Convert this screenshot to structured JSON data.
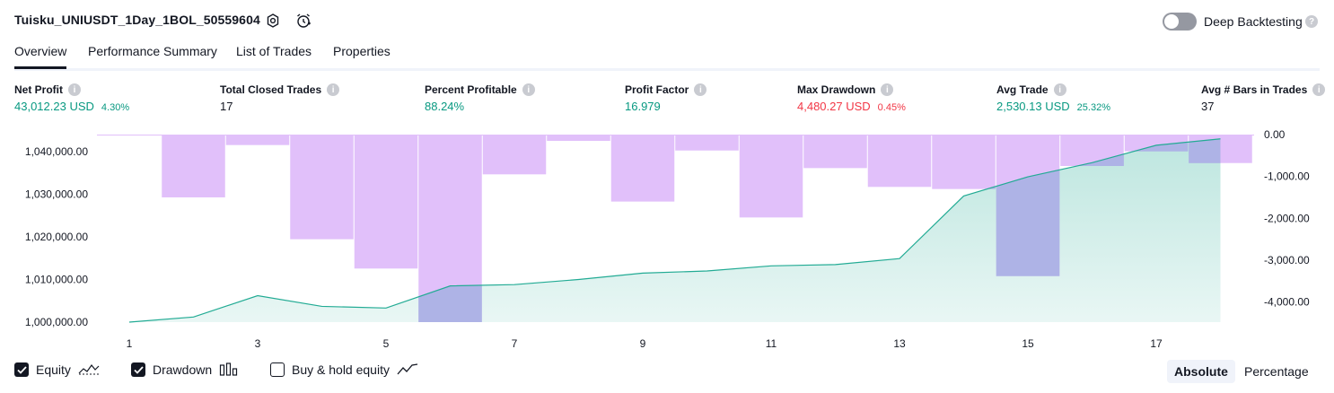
{
  "header": {
    "title": "Tuisku_UNIUSDT_1Day_1BOL_50559604",
    "deep_backtesting_label": "Deep Backtesting",
    "deep_backtesting_enabled": false
  },
  "tabs": [
    {
      "label": "Overview",
      "active": true
    },
    {
      "label": "Performance Summary",
      "active": false
    },
    {
      "label": "List of Trades",
      "active": false
    },
    {
      "label": "Properties",
      "active": false
    }
  ],
  "metrics": [
    {
      "label": "Net Profit",
      "value": "43,012.23 USD",
      "pct": "4.30%",
      "tone": "pos"
    },
    {
      "label": "Total Closed Trades",
      "value": "17",
      "pct": "",
      "tone": "neutral"
    },
    {
      "label": "Percent Profitable",
      "value": "88.24%",
      "pct": "",
      "tone": "pos"
    },
    {
      "label": "Profit Factor",
      "value": "16.979",
      "pct": "",
      "tone": "pos"
    },
    {
      "label": "Max Drawdown",
      "value": "4,480.27 USD",
      "pct": "0.45%",
      "tone": "neg"
    },
    {
      "label": "Avg Trade",
      "value": "2,530.13 USD",
      "pct": "25.32%",
      "tone": "pos"
    },
    {
      "label": "Avg # Bars in Trades",
      "value": "37",
      "pct": "",
      "tone": "neutral"
    }
  ],
  "chart_data": {
    "type": "area",
    "x": [
      1,
      2,
      3,
      4,
      5,
      6,
      7,
      8,
      9,
      10,
      11,
      12,
      13,
      14,
      15,
      16,
      17,
      18
    ],
    "x_tick_labels": [
      "1",
      "3",
      "5",
      "7",
      "9",
      "11",
      "13",
      "15",
      "17"
    ],
    "series": [
      {
        "name": "Equity",
        "axis": "left",
        "color": "#22ab94",
        "values": [
          1000000,
          1001200,
          1006200,
          1003700,
          1003300,
          1008500,
          1008800,
          1010000,
          1011500,
          1012000,
          1013200,
          1013500,
          1014900,
          1029600,
          1034100,
          1037400,
          1041500,
          1043000
        ]
      },
      {
        "name": "Drawdown",
        "axis": "right",
        "type": "bar",
        "color": "#e1c0fa",
        "values": [
          0,
          -1500,
          -250,
          -2500,
          -3200,
          -4480,
          -950,
          -150,
          -1600,
          -380,
          -1980,
          -800,
          -1250,
          -1300,
          -3380,
          -750,
          -400,
          -680
        ]
      }
    ],
    "left_axis": {
      "ylim": [
        1000000,
        1044000
      ],
      "ticks": [
        "1,000,000.00",
        "1,010,000.00",
        "1,020,000.00",
        "1,030,000.00",
        "1,040,000.00"
      ]
    },
    "right_axis": {
      "ylim": [
        -4480,
        0
      ],
      "ticks": [
        "0.00",
        "-1,000.00",
        "-2,000.00",
        "-3,000.00",
        "-4,000.00"
      ]
    },
    "grid": false
  },
  "legend": [
    {
      "label": "Equity",
      "checked": true,
      "icon": "equity-line-icon"
    },
    {
      "label": "Drawdown",
      "checked": true,
      "icon": "drawdown-bars-icon"
    },
    {
      "label": "Buy & hold equity",
      "checked": false,
      "icon": "buy-hold-line-icon"
    }
  ],
  "scale_toggle": {
    "options": [
      "Absolute",
      "Percentage"
    ],
    "selected": "Absolute"
  }
}
